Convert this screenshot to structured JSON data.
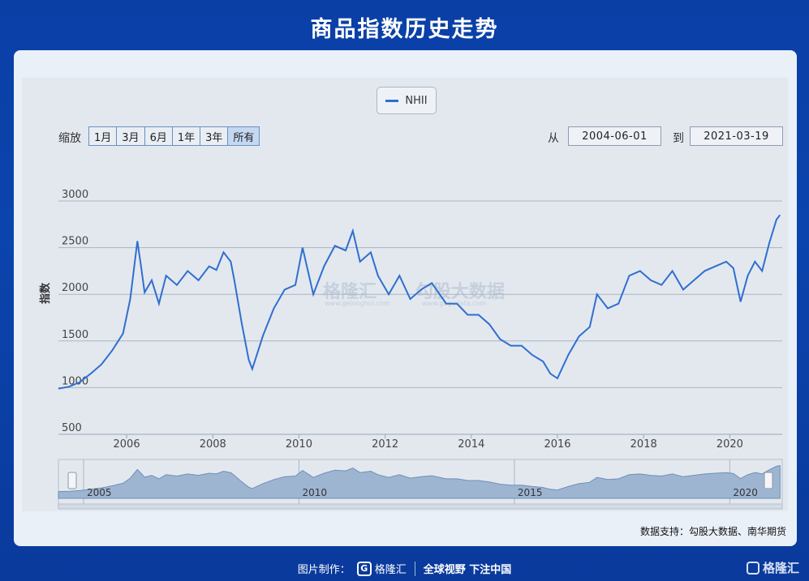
{
  "page": {
    "title": "商品指数历史走势"
  },
  "controls": {
    "zoom_label": "缩放",
    "zoom_buttons": [
      "1月",
      "3月",
      "6月",
      "1年",
      "3年",
      "所有"
    ],
    "active_zoom": "所有",
    "from_label": "从",
    "from_value": "2004-06-01",
    "to_label": "到",
    "to_value": "2021-03-19"
  },
  "watermark": {
    "left_text": "格隆汇",
    "left_sub": "www.gelonghui.com",
    "right_text": "勾股大数据",
    "right_sub": "www.gogudata.com"
  },
  "source": "数据支持：勾股大数据、南华期货",
  "footer": {
    "made_by": "图片制作：",
    "brand": "格隆汇",
    "slogan": "全球视野 下注中国"
  },
  "corner_brand": "格隆汇",
  "colors": {
    "line": "#2f6fcf",
    "navigator_fill": "#9eb5d2",
    "background": "#0b44ad"
  },
  "chart_data": {
    "type": "line",
    "title": "",
    "ylabel": "指数",
    "xlabel": "",
    "ylim": [
      500,
      3000
    ],
    "yticks": [
      "500",
      "1000",
      "1500",
      "2000",
      "2500",
      "3000"
    ],
    "xticks": [
      "2006",
      "2008",
      "2010",
      "2012",
      "2014",
      "2016",
      "2018",
      "2020"
    ],
    "navigator_ticks": [
      "2005",
      "2010",
      "2015",
      "2020"
    ],
    "grid": true,
    "legend": "top-center",
    "series": [
      {
        "name": "NHII",
        "x": [
          "2004-06",
          "2004-09",
          "2004-12",
          "2005-03",
          "2005-06",
          "2005-09",
          "2005-12",
          "2006-02",
          "2006-04",
          "2006-05",
          "2006-06",
          "2006-08",
          "2006-10",
          "2006-12",
          "2007-03",
          "2007-06",
          "2007-09",
          "2007-12",
          "2008-02",
          "2008-04",
          "2008-06",
          "2008-07",
          "2008-09",
          "2008-11",
          "2008-12",
          "2009-03",
          "2009-06",
          "2009-09",
          "2009-12",
          "2010-02",
          "2010-05",
          "2010-08",
          "2010-11",
          "2011-02",
          "2011-04",
          "2011-06",
          "2011-09",
          "2011-11",
          "2012-02",
          "2012-05",
          "2012-08",
          "2012-11",
          "2013-02",
          "2013-06",
          "2013-09",
          "2013-12",
          "2014-03",
          "2014-06",
          "2014-09",
          "2014-12",
          "2015-03",
          "2015-06",
          "2015-09",
          "2015-11",
          "2016-01",
          "2016-04",
          "2016-07",
          "2016-10",
          "2016-12",
          "2017-03",
          "2017-06",
          "2017-09",
          "2017-12",
          "2018-03",
          "2018-06",
          "2018-09",
          "2018-12",
          "2019-03",
          "2019-06",
          "2019-09",
          "2019-12",
          "2020-02",
          "2020-04",
          "2020-06",
          "2020-08",
          "2020-10",
          "2020-12",
          "2021-02",
          "2021-03"
        ],
        "y": [
          990,
          1010,
          1060,
          1150,
          1250,
          1400,
          1580,
          1950,
          2570,
          2300,
          2020,
          2150,
          1900,
          2200,
          2100,
          2250,
          2150,
          2300,
          2260,
          2450,
          2350,
          2150,
          1700,
          1300,
          1200,
          1560,
          1850,
          2050,
          2100,
          2500,
          2000,
          2300,
          2520,
          2470,
          2680,
          2350,
          2450,
          2200,
          2000,
          2200,
          1950,
          2050,
          2120,
          1900,
          1900,
          1780,
          1780,
          1680,
          1520,
          1450,
          1450,
          1350,
          1280,
          1150,
          1100,
          1350,
          1550,
          1650,
          2000,
          1850,
          1900,
          2200,
          2250,
          2150,
          2100,
          2250,
          2050,
          2150,
          2250,
          2300,
          2350,
          2280,
          1920,
          2200,
          2350,
          2250,
          2550,
          2800,
          2850
        ]
      }
    ]
  }
}
